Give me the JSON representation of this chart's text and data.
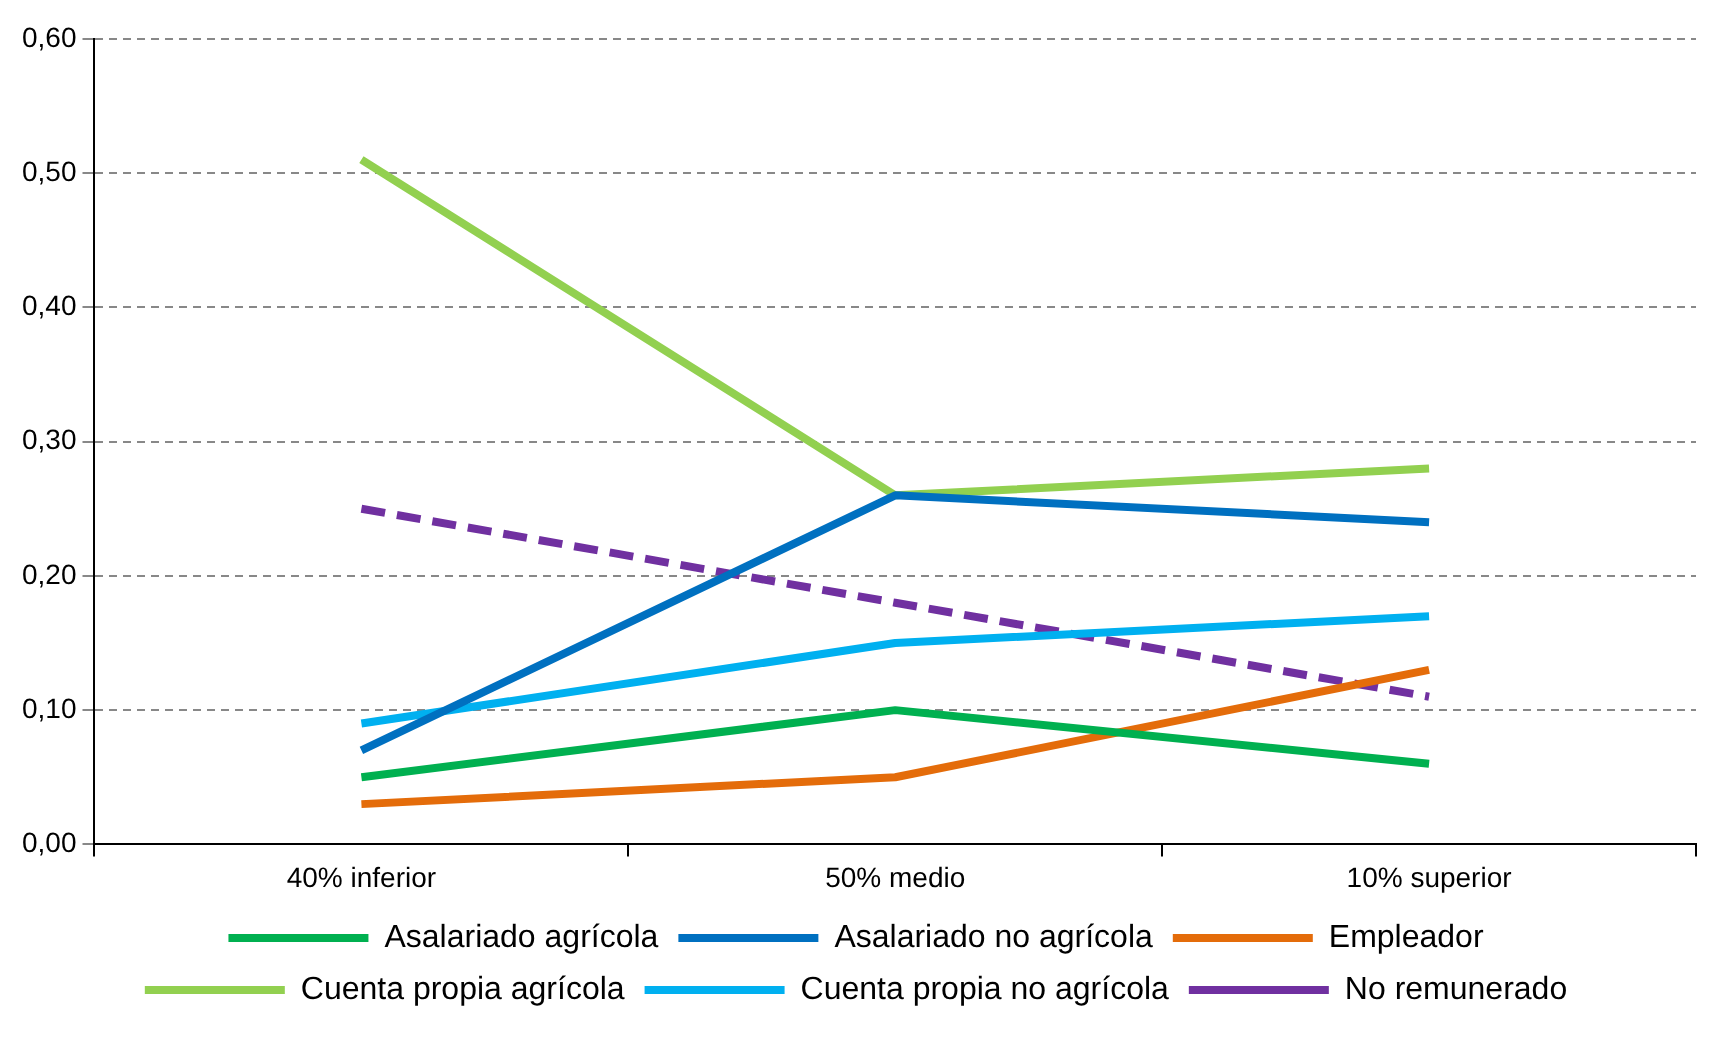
{
  "chart_data": {
    "type": "line",
    "categories": [
      "40% inferior",
      "50% medio",
      "10% superior"
    ],
    "series": [
      {
        "name": "Asalariado agrícola",
        "color": "#00b050",
        "values": [
          0.05,
          0.1,
          0.06
        ]
      },
      {
        "name": "Asalariado no agrícola",
        "color": "#0070c0",
        "values": [
          0.07,
          0.26,
          0.24
        ]
      },
      {
        "name": "Empleador",
        "color": "#e46c0a",
        "values": [
          0.03,
          0.05,
          0.13
        ]
      },
      {
        "name": "Cuenta propia agrícola",
        "color": "#92d050",
        "values": [
          0.51,
          0.26,
          0.28
        ]
      },
      {
        "name": "Cuenta propia no agrícola",
        "color": "#00b0f0",
        "values": [
          0.09,
          0.15,
          0.17
        ]
      },
      {
        "name": "No remunerado",
        "color": "#7030a0",
        "values": [
          0.25,
          0.18,
          0.11
        ],
        "line_style": "dashed"
      }
    ],
    "ylim": [
      0,
      0.6
    ],
    "yticks": [
      {
        "value": 0,
        "label": "0,00"
      },
      {
        "value": 0.1,
        "label": "0,10"
      },
      {
        "value": 0.2,
        "label": "0,20"
      },
      {
        "value": 0.3,
        "label": "0,30"
      },
      {
        "value": 0.4,
        "label": "0,40"
      },
      {
        "value": 0.5,
        "label": "0,50"
      },
      {
        "value": 0.6,
        "label": "0,60"
      }
    ],
    "grid": "y",
    "legend": "bottom",
    "marker": "none",
    "line_style": "solid"
  }
}
